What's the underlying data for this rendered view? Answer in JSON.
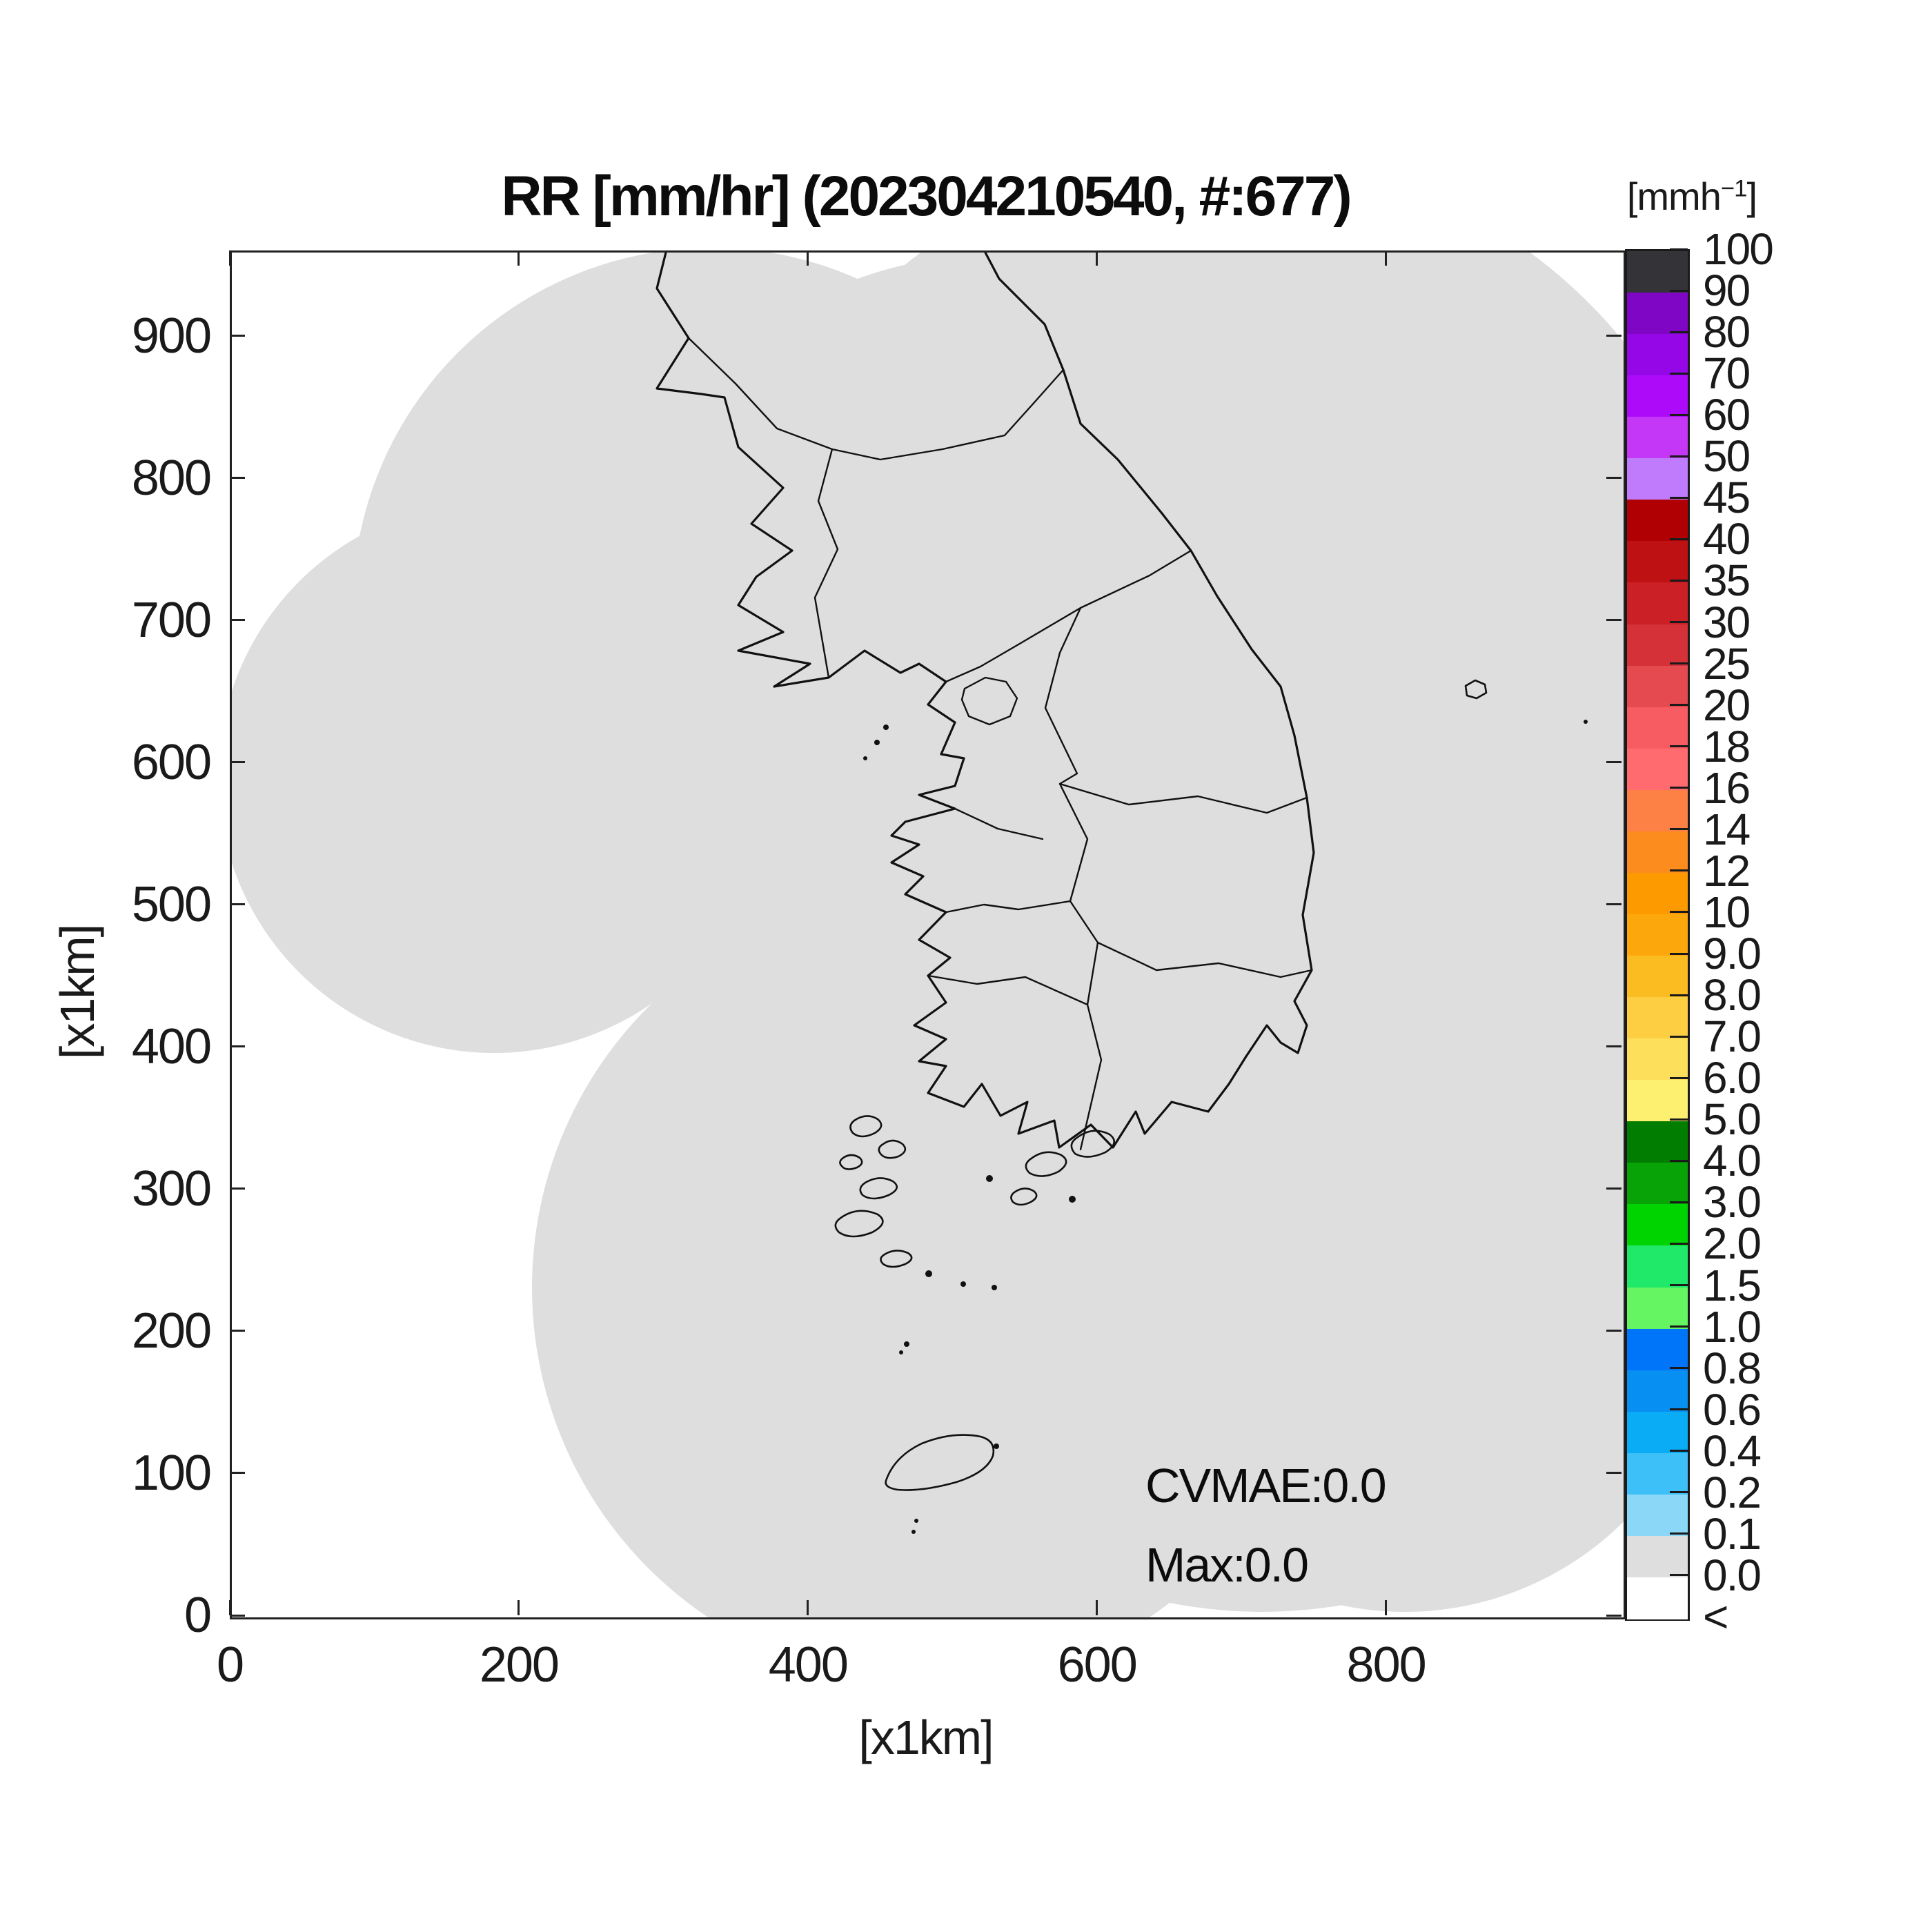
{
  "title": "RR [mm/hr] (202304210540, #:677)",
  "axes": {
    "xlabel": "[x1km]",
    "ylabel": "[x1km]",
    "x_max": 963,
    "y_max": 960,
    "x_ticks": [
      {
        "v": 0,
        "label": "0"
      },
      {
        "v": 200,
        "label": "200"
      },
      {
        "v": 400,
        "label": "400"
      },
      {
        "v": 600,
        "label": "600"
      },
      {
        "v": 800,
        "label": "800"
      }
    ],
    "y_ticks": [
      {
        "v": 0,
        "label": "0"
      },
      {
        "v": 100,
        "label": "100"
      },
      {
        "v": 200,
        "label": "200"
      },
      {
        "v": 300,
        "label": "300"
      },
      {
        "v": 400,
        "label": "400"
      },
      {
        "v": 500,
        "label": "500"
      },
      {
        "v": 600,
        "label": "600"
      },
      {
        "v": 700,
        "label": "700"
      },
      {
        "v": 800,
        "label": "800"
      },
      {
        "v": 900,
        "label": "900"
      }
    ]
  },
  "annotations": {
    "cvmae": "CVMAE:0.0",
    "max": "Max:0.0"
  },
  "map": {
    "coverage_fill": "#dedede",
    "outline_color": "#111111",
    "background": "#ffffff"
  },
  "colorbar": {
    "unit_prefix": "[mmh",
    "unit_exponent": "−1",
    "unit_suffix": "]",
    "extend_label": "<",
    "levels": [
      {
        "label": "100",
        "color": "#343338"
      },
      {
        "label": "90",
        "color": "#8006C6"
      },
      {
        "label": "80",
        "color": "#9607E8"
      },
      {
        "label": "70",
        "color": "#AD0AFA"
      },
      {
        "label": "60",
        "color": "#C437F7"
      },
      {
        "label": "50",
        "color": "#BF7BFB"
      },
      {
        "label": "45",
        "color": "#B10003"
      },
      {
        "label": "40",
        "color": "#BD1113"
      },
      {
        "label": "35",
        "color": "#CB2026"
      },
      {
        "label": "30",
        "color": "#D43238"
      },
      {
        "label": "25",
        "color": "#E54A50"
      },
      {
        "label": "20",
        "color": "#F65C62"
      },
      {
        "label": "18",
        "color": "#FF6B6E"
      },
      {
        "label": "16",
        "color": "#FD8145"
      },
      {
        "label": "14",
        "color": "#FB8C1D"
      },
      {
        "label": "12",
        "color": "#FC9A00"
      },
      {
        "label": "10",
        "color": "#FCA80D"
      },
      {
        "label": "9.0",
        "color": "#FBBC22"
      },
      {
        "label": "8.0",
        "color": "#FDCE42"
      },
      {
        "label": "7.0",
        "color": "#FEDF5C"
      },
      {
        "label": "6.0",
        "color": "#FDEF6F"
      },
      {
        "label": "5.0",
        "color": "#017E01"
      },
      {
        "label": "4.0",
        "color": "#07A307"
      },
      {
        "label": "3.0",
        "color": "#00D400"
      },
      {
        "label": "2.0",
        "color": "#20E96A"
      },
      {
        "label": "1.5",
        "color": "#66F562"
      },
      {
        "label": "1.0",
        "color": "#0075FA"
      },
      {
        "label": "0.8",
        "color": "#088FF2"
      },
      {
        "label": "0.6",
        "color": "#0AACF5"
      },
      {
        "label": "0.4",
        "color": "#3DBFF8"
      },
      {
        "label": "0.2",
        "color": "#8AD7F8"
      },
      {
        "label": "0.1",
        "color": "#DEDEDE"
      },
      {
        "label": "0.0",
        "color": "#FFFFFF"
      }
    ]
  },
  "chart_data": {
    "type": "heatmap",
    "title": "RR [mm/hr] (202304210540, #:677)",
    "datetime_code": "202304210540",
    "station_count": 677,
    "xlabel": "[x1km]",
    "ylabel": "[x1km]",
    "xlim": [
      0,
      963
    ],
    "ylim": [
      0,
      960
    ],
    "x_ticks": [
      0,
      200,
      400,
      600,
      800
    ],
    "y_ticks": [
      0,
      100,
      200,
      300,
      400,
      500,
      600,
      700,
      800,
      900
    ],
    "grid": false,
    "legend_position": "right colorbar",
    "colorbar_unit": "mm h^-1",
    "colorbar_boundaries": [
      0.0,
      0.1,
      0.2,
      0.4,
      0.6,
      0.8,
      1.0,
      1.5,
      2.0,
      3.0,
      4.0,
      5.0,
      6.0,
      7.0,
      8.0,
      9.0,
      10,
      12,
      14,
      16,
      18,
      20,
      25,
      30,
      35,
      40,
      45,
      50,
      60,
      70,
      80,
      90,
      100
    ],
    "values_summary": {
      "cvmae": 0.0,
      "max": 0.0,
      "field": "Rain rate is 0.0 mm/hr over the entire radar coverage area (light gray union of range circles over the Korean peninsula); regions outside radar coverage are white"
    },
    "annotations": [
      "CVMAE:0.0",
      "Max:0.0"
    ]
  }
}
